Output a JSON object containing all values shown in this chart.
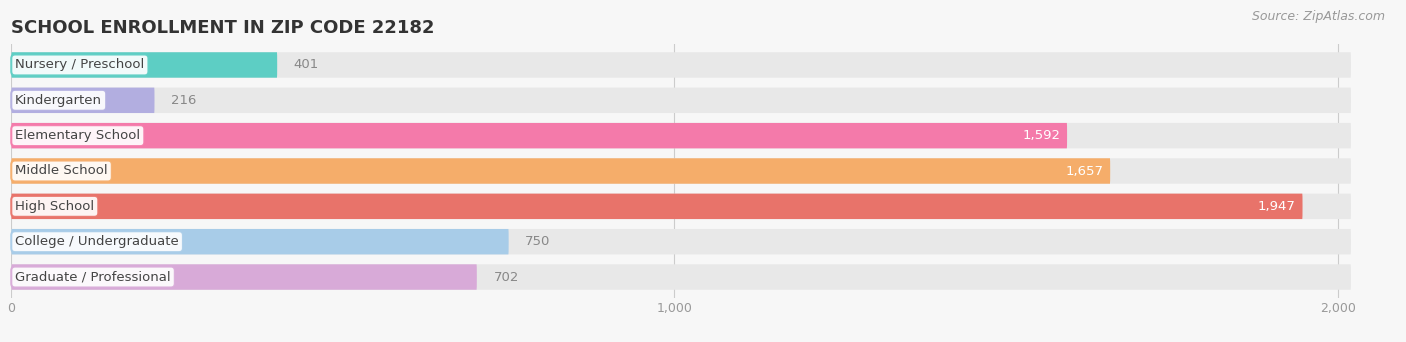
{
  "title": "SCHOOL ENROLLMENT IN ZIP CODE 22182",
  "source": "Source: ZipAtlas.com",
  "categories": [
    "Nursery / Preschool",
    "Kindergarten",
    "Elementary School",
    "Middle School",
    "High School",
    "College / Undergraduate",
    "Graduate / Professional"
  ],
  "values": [
    401,
    216,
    1592,
    1657,
    1947,
    750,
    702
  ],
  "bar_colors": [
    "#5dcec4",
    "#b2aee0",
    "#f47aaa",
    "#f5ad6a",
    "#e8736a",
    "#a8cce8",
    "#d8aad8"
  ],
  "value_label_inside": [
    false,
    false,
    true,
    true,
    true,
    false,
    false
  ],
  "xlim_max": 2050,
  "bg_bar_max": 2020,
  "background_color": "#f7f7f7",
  "bar_background_color": "#e8e8e8",
  "title_fontsize": 13,
  "source_fontsize": 9,
  "label_fontsize": 9.5,
  "value_fontsize": 9.5,
  "xticks": [
    0,
    1000,
    2000
  ],
  "xtick_labels": [
    "0",
    "1,000",
    "2,000"
  ]
}
